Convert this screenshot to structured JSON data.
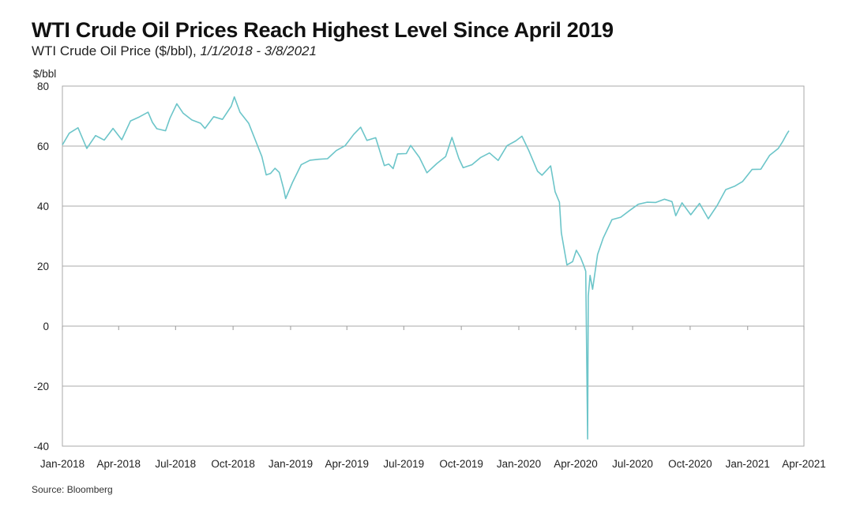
{
  "chart_data": {
    "type": "line",
    "title": "WTI Crude Oil Prices Reach Highest Level Since April 2019",
    "subtitle_main": "WTI Crude Oil Price ($/bbl), ",
    "subtitle_range": "1/1/2018 - 3/8/2021",
    "ylabel": "$/bbl",
    "xlabel": "",
    "ylim": [
      -40,
      80
    ],
    "yticks": [
      80,
      60,
      40,
      20,
      0,
      -20,
      -40
    ],
    "xlim": [
      "2018-01-01",
      "2021-04-01"
    ],
    "xticks": [
      {
        "date": "2018-01-01",
        "label": "Jan-2018"
      },
      {
        "date": "2018-04-01",
        "label": "Apr-2018"
      },
      {
        "date": "2018-07-01",
        "label": "Jul-2018"
      },
      {
        "date": "2018-10-01",
        "label": "Oct-2018"
      },
      {
        "date": "2019-01-01",
        "label": "Jan-2019"
      },
      {
        "date": "2019-04-01",
        "label": "Apr-2019"
      },
      {
        "date": "2019-07-01",
        "label": "Jul-2019"
      },
      {
        "date": "2019-10-01",
        "label": "Oct-2019"
      },
      {
        "date": "2020-01-01",
        "label": "Jan-2020"
      },
      {
        "date": "2020-04-01",
        "label": "Apr-2020"
      },
      {
        "date": "2020-07-01",
        "label": "Jul-2020"
      },
      {
        "date": "2020-10-01",
        "label": "Oct-2020"
      },
      {
        "date": "2021-01-01",
        "label": "Jan-2021"
      },
      {
        "date": "2021-04-01",
        "label": "Apr-2021"
      }
    ],
    "grid": "horizontal",
    "series": [
      {
        "color": "#6cc5c9",
        "points": [
          [
            "2018-01-01",
            60.4
          ],
          [
            "2018-01-12",
            64.3
          ],
          [
            "2018-01-26",
            66.1
          ],
          [
            "2018-02-09",
            59.2
          ],
          [
            "2018-02-23",
            63.5
          ],
          [
            "2018-03-09",
            62.0
          ],
          [
            "2018-03-23",
            65.9
          ],
          [
            "2018-04-06",
            62.1
          ],
          [
            "2018-04-20",
            68.4
          ],
          [
            "2018-05-04",
            69.7
          ],
          [
            "2018-05-18",
            71.3
          ],
          [
            "2018-05-25",
            67.9
          ],
          [
            "2018-06-01",
            65.8
          ],
          [
            "2018-06-15",
            65.1
          ],
          [
            "2018-06-22",
            69.3
          ],
          [
            "2018-07-03",
            74.1
          ],
          [
            "2018-07-13",
            71.0
          ],
          [
            "2018-07-27",
            68.7
          ],
          [
            "2018-08-10",
            67.6
          ],
          [
            "2018-08-17",
            65.9
          ],
          [
            "2018-08-31",
            69.8
          ],
          [
            "2018-09-14",
            68.9
          ],
          [
            "2018-09-28",
            73.3
          ],
          [
            "2018-10-03",
            76.4
          ],
          [
            "2018-10-12",
            71.3
          ],
          [
            "2018-10-26",
            67.6
          ],
          [
            "2018-11-09",
            60.2
          ],
          [
            "2018-11-16",
            56.5
          ],
          [
            "2018-11-23",
            50.4
          ],
          [
            "2018-11-30",
            50.9
          ],
          [
            "2018-12-07",
            52.6
          ],
          [
            "2018-12-14",
            51.2
          ],
          [
            "2018-12-21",
            45.6
          ],
          [
            "2018-12-24",
            42.5
          ],
          [
            "2019-01-04",
            47.9
          ],
          [
            "2019-01-18",
            53.8
          ],
          [
            "2019-02-01",
            55.3
          ],
          [
            "2019-02-15",
            55.6
          ],
          [
            "2019-03-01",
            55.8
          ],
          [
            "2019-03-15",
            58.5
          ],
          [
            "2019-03-29",
            60.1
          ],
          [
            "2019-04-12",
            63.9
          ],
          [
            "2019-04-23",
            66.3
          ],
          [
            "2019-05-03",
            61.9
          ],
          [
            "2019-05-17",
            62.8
          ],
          [
            "2019-05-31",
            53.5
          ],
          [
            "2019-06-07",
            54.0
          ],
          [
            "2019-06-14",
            52.5
          ],
          [
            "2019-06-21",
            57.4
          ],
          [
            "2019-07-05",
            57.5
          ],
          [
            "2019-07-12",
            60.2
          ],
          [
            "2019-07-26",
            56.2
          ],
          [
            "2019-08-07",
            51.1
          ],
          [
            "2019-08-23",
            54.2
          ],
          [
            "2019-09-06",
            56.5
          ],
          [
            "2019-09-16",
            62.9
          ],
          [
            "2019-09-27",
            55.9
          ],
          [
            "2019-10-04",
            52.8
          ],
          [
            "2019-10-18",
            53.8
          ],
          [
            "2019-11-01",
            56.2
          ],
          [
            "2019-11-15",
            57.7
          ],
          [
            "2019-11-29",
            55.2
          ],
          [
            "2019-12-13",
            60.1
          ],
          [
            "2019-12-27",
            61.7
          ],
          [
            "2020-01-06",
            63.3
          ],
          [
            "2020-01-17",
            58.5
          ],
          [
            "2020-01-31",
            51.6
          ],
          [
            "2020-02-07",
            50.3
          ],
          [
            "2020-02-21",
            53.4
          ],
          [
            "2020-02-28",
            44.8
          ],
          [
            "2020-03-06",
            41.3
          ],
          [
            "2020-03-09",
            31.1
          ],
          [
            "2020-03-18",
            20.4
          ],
          [
            "2020-03-27",
            21.5
          ],
          [
            "2020-04-02",
            25.3
          ],
          [
            "2020-04-09",
            22.8
          ],
          [
            "2020-04-14",
            20.1
          ],
          [
            "2020-04-17",
            18.3
          ],
          [
            "2020-04-20",
            -37.6
          ],
          [
            "2020-04-21",
            10.0
          ],
          [
            "2020-04-24",
            16.9
          ],
          [
            "2020-04-28",
            12.3
          ],
          [
            "2020-05-06",
            23.9
          ],
          [
            "2020-05-15",
            29.4
          ],
          [
            "2020-05-29",
            35.5
          ],
          [
            "2020-06-12",
            36.3
          ],
          [
            "2020-06-26",
            38.5
          ],
          [
            "2020-07-10",
            40.6
          ],
          [
            "2020-07-24",
            41.3
          ],
          [
            "2020-08-07",
            41.2
          ],
          [
            "2020-08-21",
            42.3
          ],
          [
            "2020-09-02",
            41.5
          ],
          [
            "2020-09-08",
            36.8
          ],
          [
            "2020-09-18",
            41.1
          ],
          [
            "2020-10-02",
            37.1
          ],
          [
            "2020-10-16",
            40.9
          ],
          [
            "2020-10-30",
            35.8
          ],
          [
            "2020-11-13",
            40.1
          ],
          [
            "2020-11-27",
            45.5
          ],
          [
            "2020-12-11",
            46.6
          ],
          [
            "2020-12-24",
            48.2
          ],
          [
            "2021-01-08",
            52.2
          ],
          [
            "2021-01-22",
            52.3
          ],
          [
            "2021-02-05",
            56.9
          ],
          [
            "2021-02-19",
            59.2
          ],
          [
            "2021-02-26",
            61.5
          ],
          [
            "2021-03-04",
            63.8
          ],
          [
            "2021-03-08",
            65.1
          ]
        ]
      }
    ]
  },
  "source": "Source: Bloomberg"
}
